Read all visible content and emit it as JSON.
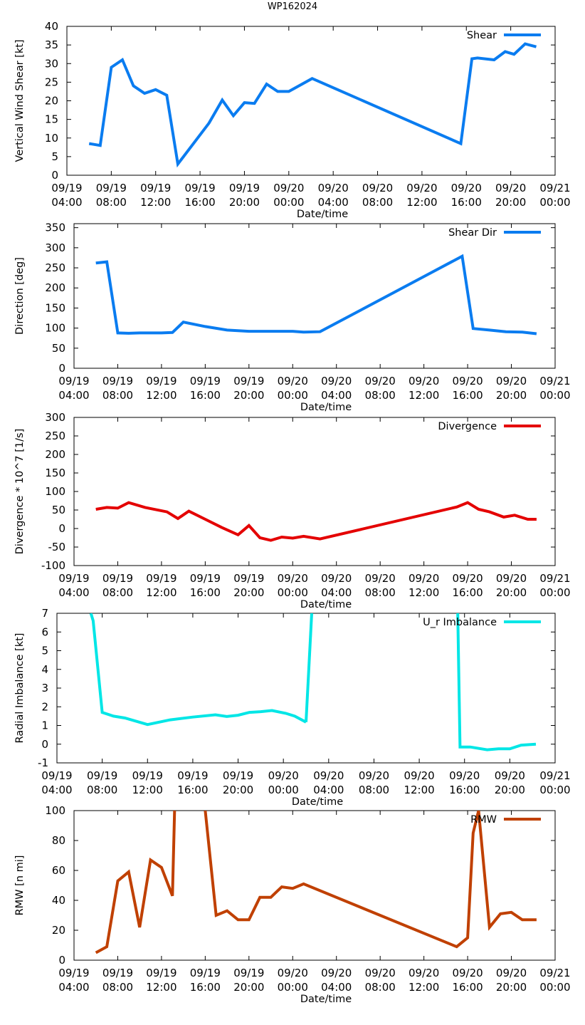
{
  "page_title": "WP162024",
  "chart_data": [
    {
      "type": "line",
      "legend": "Shear",
      "color": "#0a7cf0",
      "xlabel": "Date/time",
      "ylabel": "Vertical Wind Shear [kt]",
      "xlim": [
        4,
        48
      ],
      "ylim": [
        0,
        40
      ],
      "yticks": [
        0,
        5,
        10,
        15,
        20,
        25,
        30,
        35,
        40
      ],
      "xticks": [
        {
          "t": 4,
          "date": "09/19",
          "time": "04:00"
        },
        {
          "t": 8,
          "date": "09/19",
          "time": "08:00"
        },
        {
          "t": 12,
          "date": "09/19",
          "time": "12:00"
        },
        {
          "t": 16,
          "date": "09/19",
          "time": "16:00"
        },
        {
          "t": 20,
          "date": "09/19",
          "time": "20:00"
        },
        {
          "t": 24,
          "date": "09/20",
          "time": "00:00"
        },
        {
          "t": 28,
          "date": "09/20",
          "time": "04:00"
        },
        {
          "t": 32,
          "date": "09/20",
          "time": "08:00"
        },
        {
          "t": 36,
          "date": "09/20",
          "time": "12:00"
        },
        {
          "t": 40,
          "date": "09/20",
          "time": "16:00"
        },
        {
          "t": 44,
          "date": "09/20",
          "time": "20:00"
        },
        {
          "t": 48,
          "date": "09/21",
          "time": "00:00"
        }
      ],
      "x": [
        6.0,
        7.0,
        8.0,
        9.0,
        10.0,
        11.0,
        12.0,
        13.0,
        14.0,
        16.8,
        18.0,
        19.0,
        20.0,
        20.9,
        22.0,
        23.0,
        24.0,
        26.1,
        39.5,
        40.5,
        41.0,
        42.5,
        43.5,
        44.3,
        45.3,
        46.3
      ],
      "y": [
        8.5,
        8.0,
        29.0,
        31.0,
        24.0,
        22.0,
        23.0,
        21.5,
        3.0,
        14.0,
        20.2,
        16.0,
        19.5,
        19.3,
        24.5,
        22.5,
        22.5,
        26.0,
        8.5,
        31.3,
        31.5,
        31.0,
        33.2,
        32.5,
        35.3,
        34.5
      ]
    },
    {
      "type": "line",
      "legend": "Shear Dir",
      "color": "#0a7cf0",
      "xlabel": "Date/time",
      "ylabel": "Direction [deg]",
      "xlim": [
        4,
        48
      ],
      "ylim": [
        0,
        360
      ],
      "yticks": [
        0,
        50,
        100,
        150,
        200,
        250,
        300,
        350
      ],
      "xticks": [
        {
          "t": 4,
          "date": "09/19",
          "time": "04:00"
        },
        {
          "t": 8,
          "date": "09/19",
          "time": "08:00"
        },
        {
          "t": 12,
          "date": "09/19",
          "time": "12:00"
        },
        {
          "t": 16,
          "date": "09/19",
          "time": "16:00"
        },
        {
          "t": 20,
          "date": "09/19",
          "time": "20:00"
        },
        {
          "t": 24,
          "date": "09/20",
          "time": "00:00"
        },
        {
          "t": 28,
          "date": "09/20",
          "time": "04:00"
        },
        {
          "t": 32,
          "date": "09/20",
          "time": "08:00"
        },
        {
          "t": 36,
          "date": "09/20",
          "time": "12:00"
        },
        {
          "t": 40,
          "date": "09/20",
          "time": "16:00"
        },
        {
          "t": 44,
          "date": "09/20",
          "time": "20:00"
        },
        {
          "t": 48,
          "date": "09/21",
          "time": "00:00"
        }
      ],
      "x": [
        6.0,
        7.0,
        8.0,
        9.0,
        10.0,
        11.0,
        12.0,
        13.0,
        14.0,
        16.0,
        18.0,
        20.0,
        22.0,
        24.0,
        25.0,
        26.5,
        39.5,
        40.5,
        42.0,
        43.5,
        45.0,
        46.3
      ],
      "y": [
        262,
        265,
        88,
        87,
        88,
        88,
        88,
        89,
        115,
        104,
        95,
        92,
        92,
        92,
        90,
        91,
        279,
        99,
        95,
        91,
        90,
        86
      ]
    },
    {
      "type": "line",
      "legend": "Divergence",
      "color": "#e40000",
      "xlabel": "Date/time",
      "ylabel": "Divergence * 10^7 [1/s]",
      "xlim": [
        4,
        48
      ],
      "ylim": [
        -100,
        300
      ],
      "yticks": [
        -100,
        -50,
        0,
        50,
        100,
        150,
        200,
        250,
        300
      ],
      "xticks": [
        {
          "t": 4,
          "date": "09/19",
          "time": "04:00"
        },
        {
          "t": 8,
          "date": "09/19",
          "time": "08:00"
        },
        {
          "t": 12,
          "date": "09/19",
          "time": "12:00"
        },
        {
          "t": 16,
          "date": "09/19",
          "time": "16:00"
        },
        {
          "t": 20,
          "date": "09/19",
          "time": "20:00"
        },
        {
          "t": 24,
          "date": "09/20",
          "time": "00:00"
        },
        {
          "t": 28,
          "date": "09/20",
          "time": "04:00"
        },
        {
          "t": 32,
          "date": "09/20",
          "time": "08:00"
        },
        {
          "t": 36,
          "date": "09/20",
          "time": "12:00"
        },
        {
          "t": 40,
          "date": "09/20",
          "time": "16:00"
        },
        {
          "t": 44,
          "date": "09/20",
          "time": "20:00"
        },
        {
          "t": 48,
          "date": "09/21",
          "time": "00:00"
        }
      ],
      "x": [
        6.0,
        7.0,
        8.0,
        9.0,
        10.5,
        12.5,
        13.5,
        14.5,
        16.0,
        17.5,
        19.0,
        20.0,
        21.0,
        22.0,
        23.0,
        24.0,
        25.0,
        26.5,
        39.0,
        40.0,
        41.0,
        42.0,
        43.3,
        44.3,
        45.5,
        46.3
      ],
      "y": [
        52,
        57,
        55,
        70,
        57,
        45,
        27,
        47,
        25,
        3,
        -17,
        8,
        -25,
        -32,
        -23,
        -26,
        -21,
        -28,
        58,
        70,
        52,
        45,
        31,
        36,
        25,
        25
      ]
    },
    {
      "type": "line",
      "legend": "U_r Imbalance",
      "color": "#00e6e6",
      "xlabel": "Date/time",
      "ylabel": "Radial Imbalance [kt]",
      "xlim": [
        4,
        48
      ],
      "ylim": [
        -1,
        7
      ],
      "yticks": [
        -1,
        0,
        1,
        2,
        3,
        4,
        5,
        6,
        7
      ],
      "xticks": [
        {
          "t": 4,
          "date": "09/19",
          "time": "04:00"
        },
        {
          "t": 8,
          "date": "09/19",
          "time": "08:00"
        },
        {
          "t": 12,
          "date": "09/19",
          "time": "12:00"
        },
        {
          "t": 16,
          "date": "09/19",
          "time": "16:00"
        },
        {
          "t": 20,
          "date": "09/19",
          "time": "20:00"
        },
        {
          "t": 24,
          "date": "09/20",
          "time": "00:00"
        },
        {
          "t": 28,
          "date": "09/20",
          "time": "04:00"
        },
        {
          "t": 32,
          "date": "09/20",
          "time": "08:00"
        },
        {
          "t": 36,
          "date": "09/20",
          "time": "12:00"
        },
        {
          "t": 40,
          "date": "09/20",
          "time": "16:00"
        },
        {
          "t": 44,
          "date": "09/20",
          "time": "20:00"
        },
        {
          "t": 48,
          "date": "09/21",
          "time": "00:00"
        }
      ],
      "segments": [
        {
          "x": [
            7.0,
            7.2,
            8.0,
            9.0,
            10.0,
            12.0,
            14.0,
            16.0,
            18.0,
            19.0,
            20.0,
            21.0,
            22.0,
            23.0,
            24.2,
            25.0,
            26.0
          ],
          "y": [
            7.0,
            6.6,
            1.7,
            1.5,
            1.4,
            1.05,
            1.3,
            1.45,
            1.57,
            1.48,
            1.55,
            1.7,
            1.74,
            1.8,
            1.65,
            1.5,
            1.18
          ]
        },
        {
          "x": [
            26.0,
            26.5
          ],
          "y": [
            1.18,
            7.0
          ]
        },
        {
          "x": [
            39.4,
            39.6,
            40.5,
            42.0,
            43.0,
            44.0,
            45.0,
            46.3
          ],
          "y": [
            7.0,
            -0.15,
            -0.15,
            -0.3,
            -0.25,
            -0.25,
            -0.05,
            0.0
          ]
        }
      ]
    },
    {
      "type": "line",
      "legend": "RMW",
      "color": "#c04000",
      "xlabel": "Date/time",
      "ylabel": "RMW [n mi]",
      "xlim": [
        4,
        48
      ],
      "ylim": [
        0,
        100
      ],
      "yticks": [
        0,
        20,
        40,
        60,
        80,
        100
      ],
      "xticks": [
        {
          "t": 4,
          "date": "09/19",
          "time": "04:00"
        },
        {
          "t": 8,
          "date": "09/19",
          "time": "08:00"
        },
        {
          "t": 12,
          "date": "09/19",
          "time": "12:00"
        },
        {
          "t": 16,
          "date": "09/19",
          "time": "16:00"
        },
        {
          "t": 20,
          "date": "09/19",
          "time": "20:00"
        },
        {
          "t": 24,
          "date": "09/20",
          "time": "00:00"
        },
        {
          "t": 28,
          "date": "09/20",
          "time": "04:00"
        },
        {
          "t": 32,
          "date": "09/20",
          "time": "08:00"
        },
        {
          "t": 36,
          "date": "09/20",
          "time": "12:00"
        },
        {
          "t": 40,
          "date": "09/20",
          "time": "16:00"
        },
        {
          "t": 44,
          "date": "09/20",
          "time": "20:00"
        },
        {
          "t": 48,
          "date": "09/21",
          "time": "00:00"
        }
      ],
      "segments": [
        {
          "x": [
            6.0,
            7.0,
            8.0,
            9.0,
            10.0,
            11.0,
            12.0,
            13.0,
            13.2
          ],
          "y": [
            5,
            9,
            53,
            59,
            22,
            67,
            62,
            43,
            100
          ]
        },
        {
          "x": [
            16.0,
            17.0,
            18.0,
            19.0,
            20.0,
            21.0,
            22.0,
            23.0,
            24.0,
            25.0,
            39.0,
            40.0,
            40.5,
            41.0,
            42.0,
            43.0,
            44.0,
            45.0,
            46.3
          ],
          "y": [
            100,
            30,
            33,
            27,
            27,
            42,
            42,
            49,
            48,
            51,
            9,
            15,
            85,
            100,
            22,
            31,
            32,
            27,
            27
          ]
        }
      ]
    }
  ]
}
